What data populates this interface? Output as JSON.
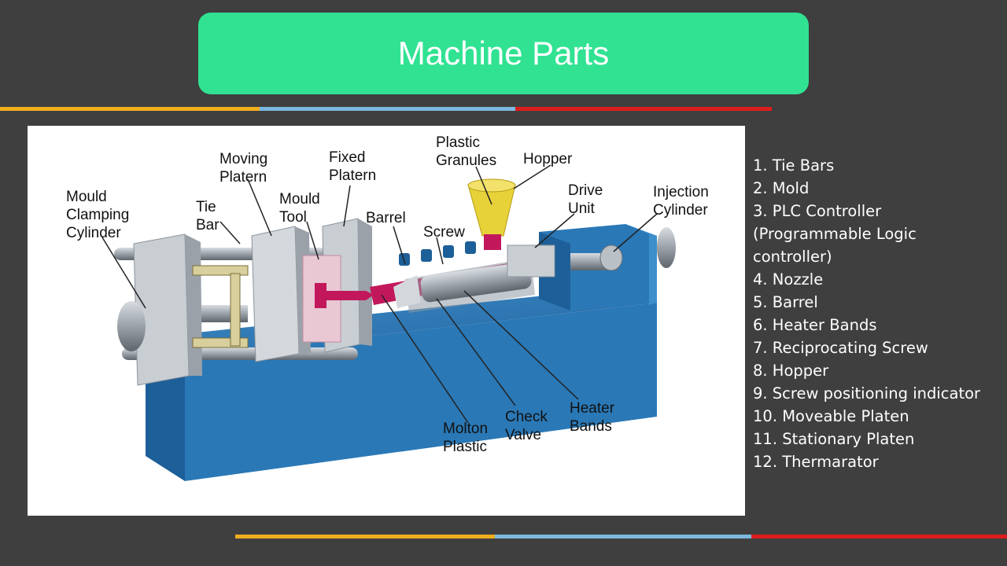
{
  "slide": {
    "title": "Machine Parts"
  },
  "colors": {
    "background": "#3f3f3f",
    "title_bg": "#30e292",
    "stripe_yellow": "#f0ae1f",
    "stripe_blue": "#7ab8de",
    "stripe_red": "#dc1d1d",
    "machine_blue": "#2a78b6"
  },
  "diagram": {
    "labels": {
      "mould_clamping_cylinder": [
        "Mould",
        "Clamping",
        "Cylinder"
      ],
      "tie_bar": [
        "Tie",
        "Bar"
      ],
      "moving_platern": [
        "Moving",
        "Platern"
      ],
      "mould_tool": [
        "Mould",
        "Tool"
      ],
      "fixed_platern": [
        "Fixed",
        "Platern"
      ],
      "barrel": [
        "Barrel"
      ],
      "screw": [
        "Screw"
      ],
      "plastic_granules": [
        "Plastic",
        "Granules"
      ],
      "hopper": [
        "Hopper"
      ],
      "drive_unit": [
        "Drive",
        "Unit"
      ],
      "injection_cylinder": [
        "Injection",
        "Cylinder"
      ],
      "molton_plastic": [
        "Molton",
        "Plastic"
      ],
      "check_valve": [
        "Check",
        "Valve"
      ],
      "heater_bands": [
        "Heater",
        "Bands"
      ]
    }
  },
  "parts_list": [
    "1.  Tie Bars",
    "2.  Mold",
    "3.  PLC Controller",
    "(Programmable Logic",
    "controller)",
    "4.  Nozzle",
    "5.  Barrel",
    "6.  Heater Bands",
    "7.  Reciprocating Screw",
    "8.  Hopper",
    "9.  Screw positioning indicator",
    "10. Moveable Platen",
    "11. Stationary Platen",
    "12. Thermarator"
  ]
}
